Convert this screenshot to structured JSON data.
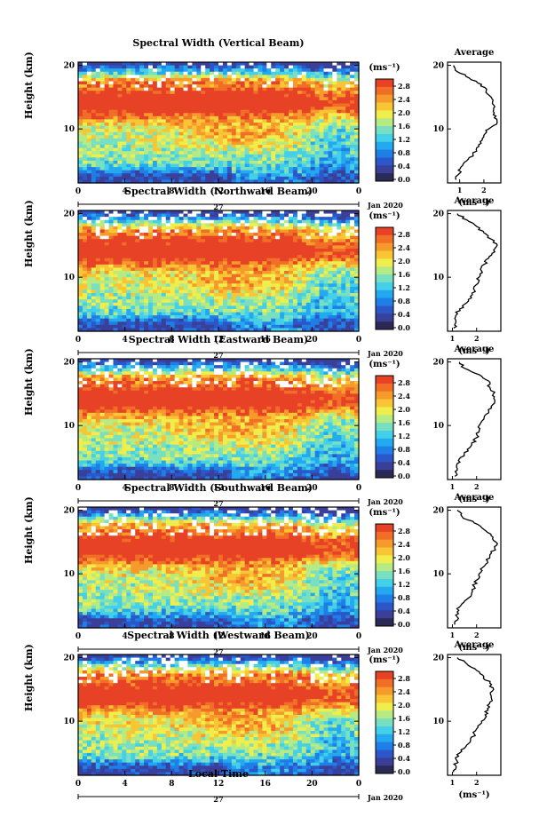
{
  "figure": {
    "x_title": "Local Time"
  },
  "common": {
    "y_label": "Height (km)",
    "x_ticks": [
      "0",
      "4",
      "8",
      "12",
      "16",
      "20",
      "0"
    ],
    "y_ticks": [
      "10",
      "20"
    ],
    "day_label": "27",
    "date_label": "Jan 2020",
    "colorbar_unit": "(ms⁻¹)",
    "colorbar_ticks": [
      "2.8",
      "2.4",
      "2.0",
      "1.6",
      "1.2",
      "0.8",
      "0.4",
      "0.0"
    ],
    "profile_title": "Average",
    "profile_xlabel": "(ms⁻¹)"
  },
  "colors": {
    "scale": [
      "#3a3f9a",
      "#2b57c8",
      "#1f7fe6",
      "#22a9f0",
      "#43d0e8",
      "#78e0c0",
      "#b6ea82",
      "#f0ee4c",
      "#f8c634",
      "#f79a2c",
      "#f06e26",
      "#e84226"
    ]
  },
  "chart_data": [
    {
      "type": "heatmap",
      "title": "Spectral Width (Vertical Beam)",
      "xlabel": "Local Time",
      "ylabel": "Height (km)",
      "xlim": [
        0,
        24
      ],
      "ylim": [
        1.5,
        20.5
      ],
      "colorbar_label": "(ms⁻¹)",
      "colorbar_range": [
        0.0,
        3.0
      ],
      "profile": {
        "title": "Average",
        "xlabel": "(ms⁻¹)",
        "xlim": [
          0.5,
          2.7
        ],
        "xticks": [
          "1",
          "2"
        ],
        "height": [
          2,
          3,
          4,
          5,
          6,
          7,
          8,
          9,
          10,
          11,
          12,
          13,
          14,
          15,
          16,
          17,
          18,
          19,
          20
        ],
        "value": [
          0.85,
          1.0,
          1.05,
          1.3,
          1.55,
          1.7,
          1.85,
          2.0,
          2.2,
          2.55,
          2.5,
          2.4,
          2.35,
          2.3,
          2.1,
          1.9,
          1.4,
          0.9,
          0.75
        ]
      }
    },
    {
      "type": "heatmap",
      "title": "Spectral Width (Northward Beam)",
      "xlabel": "Local Time",
      "ylabel": "Height (km)",
      "xlim": [
        0,
        24
      ],
      "ylim": [
        1.5,
        20.5
      ],
      "colorbar_label": "(ms⁻¹)",
      "colorbar_range": [
        0.0,
        3.0
      ],
      "profile": {
        "title": "Average",
        "xlabel": "(ms⁻¹)",
        "xlim": [
          0.8,
          3.0
        ],
        "xticks": [
          "1",
          "2"
        ],
        "height": [
          2,
          3,
          4,
          5,
          6,
          7,
          8,
          9,
          10,
          11,
          12,
          13,
          14,
          15,
          16,
          17,
          18,
          19,
          20
        ],
        "value": [
          1.05,
          1.15,
          1.15,
          1.3,
          1.6,
          1.75,
          1.9,
          2.05,
          2.1,
          2.2,
          2.3,
          2.5,
          2.75,
          2.85,
          2.6,
          2.3,
          2.0,
          1.6,
          1.2
        ]
      }
    },
    {
      "type": "heatmap",
      "title": "Spectral Width (Eastward Beam)",
      "xlabel": "Local Time",
      "ylabel": "Height (km)",
      "xlim": [
        0,
        24
      ],
      "ylim": [
        1.5,
        20.5
      ],
      "colorbar_label": "(ms⁻¹)",
      "colorbar_range": [
        0.0,
        3.0
      ],
      "profile": {
        "title": "Average",
        "xlabel": "(ms⁻¹)",
        "xlim": [
          0.8,
          3.0
        ],
        "xticks": [
          "1",
          "2"
        ],
        "height": [
          2,
          3,
          4,
          5,
          6,
          7,
          8,
          9,
          10,
          11,
          12,
          13,
          14,
          15,
          16,
          17,
          18,
          19,
          20
        ],
        "value": [
          1.1,
          1.2,
          1.2,
          1.35,
          1.65,
          1.8,
          1.95,
          2.1,
          2.1,
          2.3,
          2.5,
          2.6,
          2.75,
          2.7,
          2.55,
          2.5,
          2.1,
          1.5,
          1.3
        ]
      }
    },
    {
      "type": "heatmap",
      "title": "Spectral Width (Southward Beam)",
      "xlabel": "Local Time",
      "ylabel": "Height (km)",
      "xlim": [
        0,
        24
      ],
      "ylim": [
        1.5,
        20.5
      ],
      "colorbar_label": "(ms⁻¹)",
      "colorbar_range": [
        0.0,
        3.0
      ],
      "profile": {
        "title": "Average",
        "xlabel": "(ms⁻¹)",
        "xlim": [
          0.8,
          3.0
        ],
        "xticks": [
          "1",
          "2"
        ],
        "height": [
          2,
          3,
          4,
          5,
          6,
          7,
          8,
          9,
          10,
          11,
          12,
          13,
          14,
          15,
          16,
          17,
          18,
          19,
          20
        ],
        "value": [
          1.1,
          1.25,
          1.2,
          1.35,
          1.6,
          1.8,
          1.9,
          2.0,
          2.1,
          2.25,
          2.45,
          2.55,
          2.75,
          2.8,
          2.6,
          2.3,
          1.9,
          1.4,
          1.2
        ]
      }
    },
    {
      "type": "heatmap",
      "title": "Spectral Width (Westward Beam)",
      "xlabel": "Local Time",
      "ylabel": "Height (km)",
      "xlim": [
        0,
        24
      ],
      "ylim": [
        1.5,
        20.5
      ],
      "colorbar_label": "(ms⁻¹)",
      "colorbar_range": [
        0.0,
        3.0
      ],
      "profile": {
        "title": "Average",
        "xlabel": "(ms⁻¹)",
        "xlim": [
          0.8,
          3.0
        ],
        "xticks": [
          "1",
          "2"
        ],
        "height": [
          2,
          3,
          4,
          5,
          6,
          7,
          8,
          9,
          10,
          11,
          12,
          13,
          14,
          15,
          16,
          17,
          18,
          19,
          20
        ],
        "value": [
          1.05,
          1.15,
          1.15,
          1.3,
          1.55,
          1.75,
          1.9,
          2.05,
          2.2,
          2.35,
          2.45,
          2.55,
          2.6,
          2.7,
          2.55,
          2.3,
          2.0,
          1.6,
          1.2
        ]
      }
    }
  ]
}
